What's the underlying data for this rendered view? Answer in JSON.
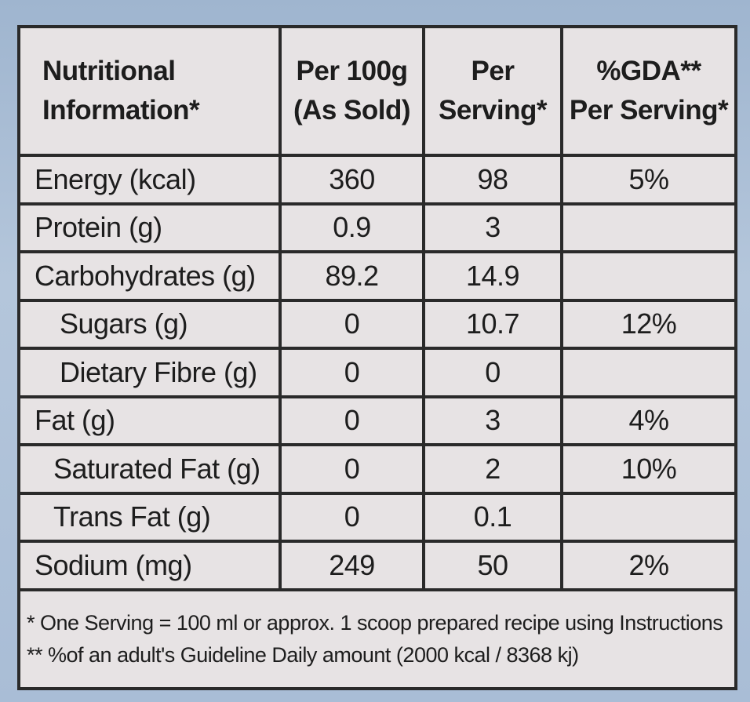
{
  "table": {
    "headers": [
      {
        "line1": "Nutritional",
        "line2": "Information*"
      },
      {
        "line1": "Per 100g",
        "line2": "(As Sold)"
      },
      {
        "line1": "Per",
        "line2": "Serving*"
      },
      {
        "line1": "%GDA**",
        "line2": "Per Serving*"
      }
    ],
    "rows": [
      {
        "label": "Energy (kcal)",
        "per100g": "360",
        "perServing": "98",
        "gda": "5%"
      },
      {
        "label": "Protein (g)",
        "per100g": "0.9",
        "perServing": "3",
        "gda": ""
      },
      {
        "label": "Carbohydrates (g)",
        "per100g": "89.2",
        "perServing": "14.9",
        "gda": ""
      },
      {
        "label": "Sugars (g)",
        "per100g": "0",
        "perServing": "10.7",
        "gda": "12%"
      },
      {
        "label": "Dietary Fibre (g)",
        "per100g": "0",
        "perServing": "0",
        "gda": ""
      },
      {
        "label": "Fat (g)",
        "per100g": "0",
        "perServing": "3",
        "gda": "4%"
      },
      {
        "label": "Saturated Fat (g)",
        "per100g": "0",
        "perServing": "2",
        "gda": "10%"
      },
      {
        "label": "Trans Fat (g)",
        "per100g": "0",
        "perServing": "0.1",
        "gda": ""
      },
      {
        "label": "Sodium (mg)",
        "per100g": "249",
        "perServing": "50",
        "gda": "2%"
      }
    ]
  },
  "footnotes": {
    "line1": "* One Serving = 100 ml or approx. 1 scoop prepared recipe using Instructions",
    "line2": "** %of an adult's Guideline Daily amount (2000 kcal / 8368 kj)"
  }
}
